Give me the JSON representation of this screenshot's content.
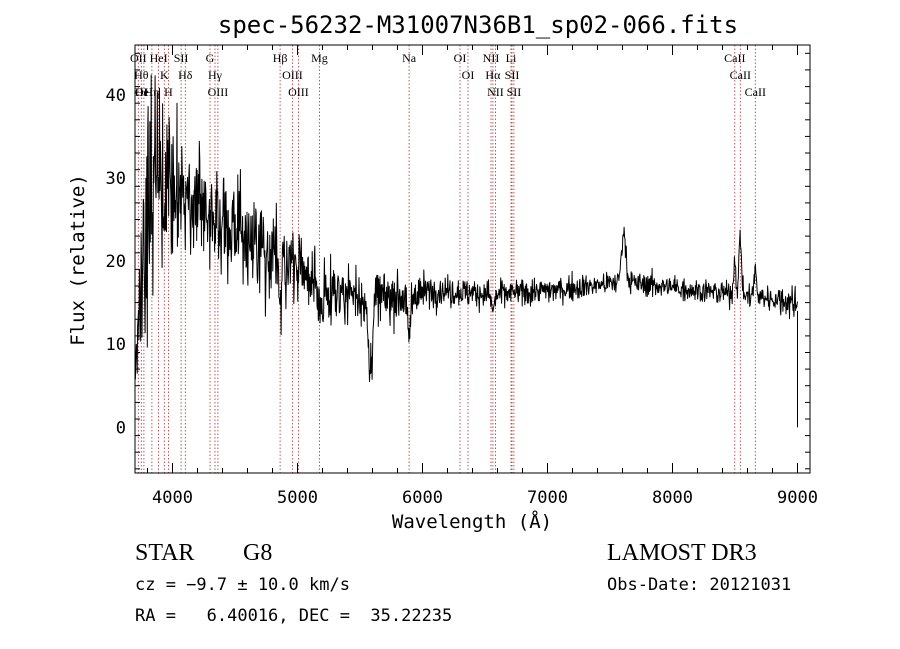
{
  "chart_data": {
    "type": "line",
    "title": "spec-56232-M31007N36B1_sp02-066.fits",
    "xlabel": "Wavelength (Å)",
    "ylabel": "Flux (relative)",
    "xlim": [
      3700,
      9100
    ],
    "ylim": [
      -5.5,
      46
    ],
    "x_ticks": [
      4000,
      5000,
      6000,
      7000,
      8000,
      9000
    ],
    "x_tick_labels": [
      "4000",
      "5000",
      "6000",
      "7000",
      "8000",
      "9000"
    ],
    "y_ticks": [
      0,
      10,
      20,
      30,
      40
    ],
    "y_tick_labels": [
      "0",
      "10",
      "20",
      "30",
      "40"
    ],
    "grid": false,
    "series": [
      {
        "name": "spectrum",
        "segments": [
          [
            3700,
            6.0,
            1.5
          ],
          [
            3800,
            28.0,
            12.0
          ],
          [
            3900,
            30.0,
            9.0
          ],
          [
            4100,
            27.0,
            6.5
          ],
          [
            4500,
            24.0,
            5.5
          ],
          [
            4900,
            20.0,
            4.0
          ],
          [
            5300,
            16.5,
            3.0
          ],
          [
            5700,
            15.5,
            2.8
          ],
          [
            6100,
            16.5,
            1.6
          ],
          [
            6600,
            16.0,
            1.4
          ],
          [
            7100,
            16.6,
            1.3
          ],
          [
            7600,
            17.5,
            1.2
          ],
          [
            8200,
            16.5,
            1.2
          ],
          [
            8800,
            15.5,
            1.3
          ],
          [
            9000,
            15.0,
            2.0
          ]
        ],
        "features": [
          [
            3934,
            -4.0,
            20
          ],
          [
            3968,
            4.0,
            20
          ],
          [
            4861,
            -5.0,
            20
          ],
          [
            5175,
            -4.0,
            30
          ],
          [
            5580,
            -9.0,
            25
          ],
          [
            5890,
            -5.0,
            20
          ],
          [
            6563,
            -2.0,
            18
          ],
          [
            7610,
            6.0,
            25
          ],
          [
            8498,
            4.0,
            14
          ],
          [
            8542,
            7.0,
            14
          ],
          [
            8662,
            3.0,
            14
          ]
        ]
      }
    ],
    "lines": [
      {
        "wave": 3726,
        "labels": [
          "OII"
        ]
      },
      {
        "wave": 3750,
        "labels": [
          "Hθ",
          "OI"
        ]
      },
      {
        "wave": 3771,
        "labels": [
          "HeI"
        ]
      },
      {
        "wave": 3835,
        "labels": [
          "Hη"
        ]
      },
      {
        "wave": 3889,
        "labels": [
          "HeI"
        ]
      },
      {
        "wave": 3934,
        "labels": [
          "K"
        ]
      },
      {
        "wave": 3968,
        "labels": [
          "H"
        ]
      },
      {
        "wave": 4069,
        "labels": [
          "SII"
        ]
      },
      {
        "wave": 4102,
        "labels": [
          "Hδ"
        ]
      },
      {
        "wave": 4300,
        "labels": [
          "G"
        ]
      },
      {
        "wave": 4340,
        "labels": [
          "Hγ"
        ]
      },
      {
        "wave": 4363,
        "labels": [
          "OIII"
        ]
      },
      {
        "wave": 4861,
        "labels": [
          "Hβ"
        ]
      },
      {
        "wave": 4959,
        "labels": [
          "OIII"
        ]
      },
      {
        "wave": 5007,
        "labels": [
          "OIII"
        ]
      },
      {
        "wave": 5175,
        "labels": [
          "Mg"
        ]
      },
      {
        "wave": 5893,
        "labels": [
          "Na"
        ]
      },
      {
        "wave": 6300,
        "labels": [
          "OI"
        ]
      },
      {
        "wave": 6364,
        "labels": [
          "OI"
        ]
      },
      {
        "wave": 6548,
        "labels": [
          "NII"
        ]
      },
      {
        "wave": 6563,
        "labels": [
          "Hα"
        ]
      },
      {
        "wave": 6583,
        "labels": [
          "NII"
        ]
      },
      {
        "wave": 6708,
        "labels": [
          "Li"
        ]
      },
      {
        "wave": 6716,
        "labels": [
          "SII"
        ]
      },
      {
        "wave": 6731,
        "labels": [
          "SII"
        ]
      },
      {
        "wave": 8498,
        "labels": [
          "CaII"
        ]
      },
      {
        "wave": 8542,
        "labels": [
          "CaII"
        ]
      },
      {
        "wave": 8662,
        "labels": [
          "CaII"
        ]
      }
    ]
  },
  "info": {
    "class": "STAR",
    "subclass": "G8",
    "survey": "LAMOST DR3",
    "cz": "cz = −9.7 ± 10.0 km/s",
    "obs_date": "Obs-Date: 20121031",
    "radec": "RA =   6.40016, DEC =  35.22235"
  },
  "colors": {
    "spectrum": "#000000",
    "marker": "#b03030",
    "axis": "#000000",
    "background": "#ffffff"
  }
}
